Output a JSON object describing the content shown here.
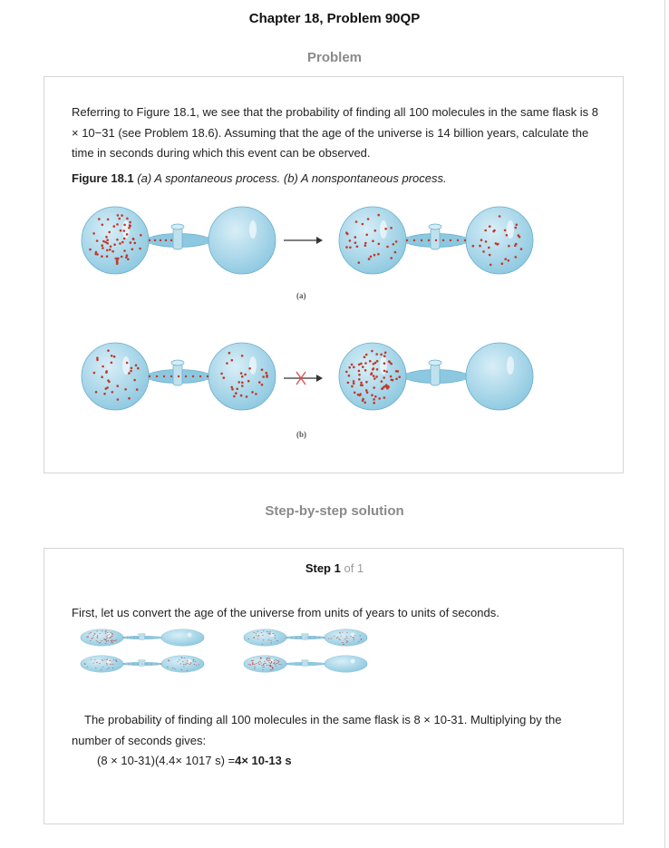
{
  "header": {
    "title": "Chapter 18, Problem 90QP"
  },
  "problem": {
    "heading": "Problem",
    "text": "Referring to Figure 18.1, we see that the probability of finding all 100 molecules in the same flask is 8 × 10−31 (see Problem 18.6). Assuming that the age of the universe is 14 billion years, calculate the time in seconds during which this event can be observed.",
    "figure_caption_bold": "Figure 18.1",
    "figure_caption_italic": "(a) A spontaneous process. (b) A nonspontaneous process.",
    "figure_label_a": "(a)",
    "figure_label_b": "(b)"
  },
  "solution": {
    "heading": "Step-by-step solution",
    "step_word": "Step 1",
    "step_of": "of 1",
    "line1": "First, let us convert the age of the universe from units of years to units of seconds.",
    "line2": "The probability of finding all 100 molecules in the same flask is 8 × 10-31. Multiplying by the number of seconds gives:",
    "result_expr": "(8 × 10-31)(4.4× 1017 s) =",
    "result_value": "4× 10-13 s"
  },
  "colors": {
    "flask": "#8cc8e0",
    "molecule": "#c0392b",
    "arrow": "#333333",
    "cross": "#d9534f"
  }
}
